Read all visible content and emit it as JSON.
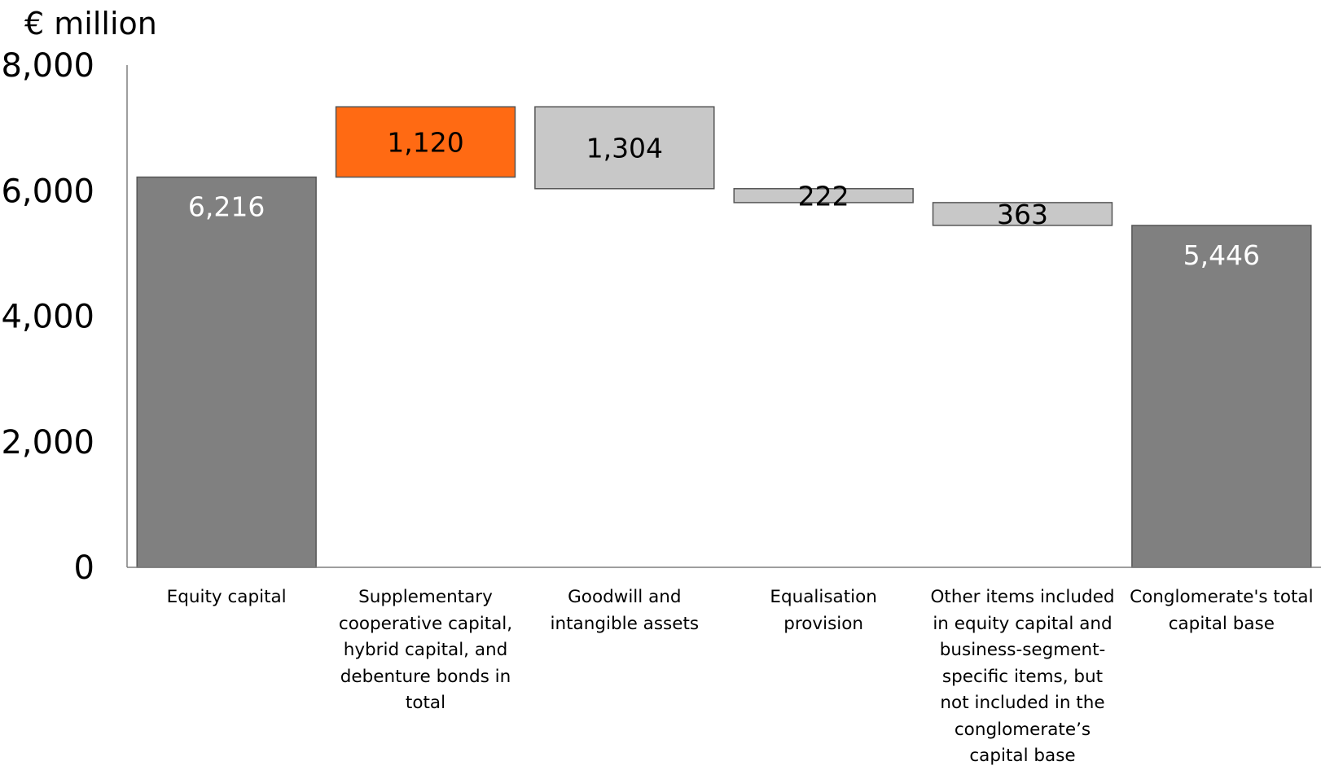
{
  "chart_data": {
    "type": "bar",
    "subtype": "waterfall",
    "unit_label": "€ million",
    "ylim": [
      0,
      8000
    ],
    "y_ticks": [
      0,
      2000,
      4000,
      6000,
      8000
    ],
    "y_tick_labels": [
      "0",
      "2,000",
      "4,000",
      "6,000",
      "8,000"
    ],
    "grid": false,
    "legend": "none",
    "categories": [
      "Equity capital",
      "Supplementary cooperative capital, hybrid capital, and debenture bonds in total",
      "Goodwill and intangible assets",
      "Equalisation provision",
      "Other items included in equity capital and business-segment-specific items, but not included in the conglomerate’s capital base",
      "Conglomerate's total capital base"
    ],
    "values": [
      6216,
      1120,
      -1304,
      -222,
      -363,
      5446
    ],
    "bar_kinds": [
      "total",
      "increase",
      "decrease",
      "decrease",
      "decrease",
      "total"
    ],
    "data_labels": [
      "6,216",
      "1,120",
      "1,304",
      "222",
      "363",
      "5,446"
    ],
    "colors": {
      "total": "#808080",
      "increase": "#ff6a13",
      "decrease": "#c8c8c8",
      "bar_outline": "#555555",
      "total_label": "#ffffff",
      "delta_label": "#000000",
      "axis": "#7f7f7f"
    }
  }
}
